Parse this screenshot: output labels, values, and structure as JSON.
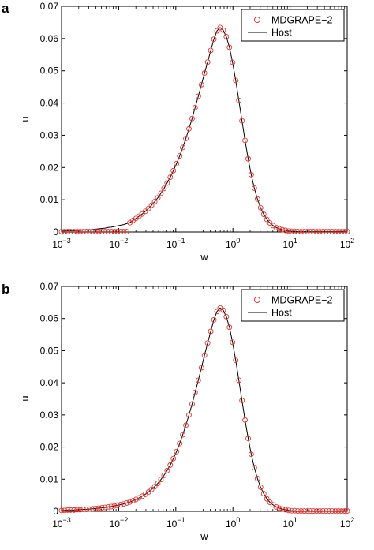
{
  "chart_data": [
    {
      "panel_label": "a",
      "type": "scatter",
      "x_scale": "log",
      "xlabel": "w",
      "ylabel": "u",
      "xlim": [
        0.001,
        100
      ],
      "ylim": [
        0,
        0.07
      ],
      "x_tick_labels": [
        {
          "base": "10",
          "exp": "−3"
        },
        {
          "base": "10",
          "exp": "−2"
        },
        {
          "base": "10",
          "exp": "−1"
        },
        {
          "base": "10",
          "exp": "0"
        },
        {
          "base": "10",
          "exp": "1"
        },
        {
          "base": "10",
          "exp": "2"
        }
      ],
      "y_tick_labels": [
        "0",
        "0.01",
        "0.02",
        "0.03",
        "0.04",
        "0.05",
        "0.06",
        "0.07"
      ],
      "grid": false,
      "legend_placement": "top-right",
      "series": [
        {
          "name": "MDGRAPE−2",
          "kind": "markers",
          "marker": "open-circle",
          "color": "#e8322d",
          "x": [
            0.001,
            0.00113,
            0.00128,
            0.00145,
            0.00165,
            0.00187,
            0.00212,
            0.0024,
            0.00272,
            0.00309,
            0.0035,
            0.00397,
            0.0045,
            0.0051,
            0.00578,
            0.00656,
            0.00744,
            0.00843,
            0.0095,
            0.0108,
            0.0122,
            0.0138,
            0.0157,
            0.0178,
            0.0201,
            0.0228,
            0.0259,
            0.0293,
            0.0332,
            0.0377,
            0.0427,
            0.0484,
            0.0549,
            0.0622,
            0.0705,
            0.08,
            0.0906,
            0.103,
            0.117,
            0.132,
            0.15,
            0.17,
            0.193,
            0.218,
            0.248,
            0.281,
            0.318,
            0.361,
            0.409,
            0.464,
            0.526,
            0.596,
            0.676,
            0.766,
            0.869,
            0.985,
            1.12,
            1.27,
            1.44,
            1.63,
            1.85,
            2.09,
            2.37,
            2.69,
            3.05,
            3.46,
            3.92,
            4.44,
            5.04,
            5.71,
            6.48,
            7.34,
            8.32,
            9.44,
            10.7,
            12.1,
            13.7,
            15.6,
            17.7,
            20.0,
            22.7,
            25.7,
            29.2,
            33.1,
            37.5,
            42.5,
            48.2,
            54.6,
            61.9,
            70.2,
            79.6,
            90.2,
            100.0
          ],
          "y": [
            0.0001,
            0.0001,
            0.0001,
            0.0001,
            0.0001,
            0.0001,
            0.0001,
            0.0001,
            0.0001,
            0.0001,
            0.0001,
            0.0001,
            0.0001,
            0.0001,
            0.0001,
            0.0001,
            0.0001,
            0.0001,
            0.0001,
            0.0001,
            0.0001,
            0.0001,
            0.0029,
            0.0036,
            0.0042,
            0.0049,
            0.0056,
            0.0064,
            0.0073,
            0.0083,
            0.0094,
            0.0106,
            0.012,
            0.0135,
            0.0152,
            0.017,
            0.019,
            0.0212,
            0.0236,
            0.0262,
            0.029,
            0.032,
            0.0352,
            0.0386,
            0.0421,
            0.0457,
            0.0493,
            0.0527,
            0.0563,
            0.0598,
            0.0624,
            0.0634,
            0.0626,
            0.0606,
            0.0573,
            0.0526,
            0.047,
            0.0408,
            0.0345,
            0.0284,
            0.0227,
            0.0178,
            0.0136,
            0.0102,
            0.0075,
            0.0055,
            0.0039,
            0.0028,
            0.002,
            0.0014,
            0.001,
            0.0007,
            0.0005,
            0.0003,
            0.0002,
            0.0002,
            0.0001,
            0.0001,
            0.0001,
            0.0001,
            0.0001,
            0.0001,
            0.0001,
            0.0001,
            0.0001,
            0.0001,
            0.0001,
            0.0001,
            0.0001,
            0.0001,
            0.0001,
            0.0001,
            0.0001
          ]
        },
        {
          "name": "Host",
          "kind": "line",
          "color": "#000000",
          "x": [
            0.001,
            0.00113,
            0.00128,
            0.00145,
            0.00165,
            0.00187,
            0.00212,
            0.0024,
            0.00272,
            0.00309,
            0.0035,
            0.00397,
            0.0045,
            0.0051,
            0.00578,
            0.00656,
            0.00744,
            0.00843,
            0.0095,
            0.0108,
            0.0122,
            0.0138,
            0.0157,
            0.0178,
            0.0201,
            0.0228,
            0.0259,
            0.0293,
            0.0332,
            0.0377,
            0.0427,
            0.0484,
            0.0549,
            0.0622,
            0.0705,
            0.08,
            0.0906,
            0.103,
            0.117,
            0.132,
            0.15,
            0.17,
            0.193,
            0.218,
            0.248,
            0.281,
            0.318,
            0.361,
            0.409,
            0.464,
            0.526,
            0.596,
            0.676,
            0.766,
            0.869,
            0.985,
            1.12,
            1.27,
            1.44,
            1.63,
            1.85,
            2.09,
            2.37,
            2.69,
            3.05,
            3.46,
            3.92,
            4.44,
            5.04,
            5.71,
            6.48,
            7.34,
            8.32,
            9.44,
            10.7,
            12.1,
            13.7,
            15.6,
            17.7,
            20.0,
            22.7,
            25.7,
            29.2,
            33.1,
            37.5,
            42.5,
            48.2,
            54.6,
            61.9,
            70.2,
            79.6,
            90.2,
            100.0
          ],
          "y": [
            0.0003,
            0.0003,
            0.0004,
            0.0004,
            0.0004,
            0.0005,
            0.0005,
            0.0006,
            0.0006,
            0.0007,
            0.0008,
            0.0009,
            0.001,
            0.0011,
            0.0012,
            0.0014,
            0.0015,
            0.0017,
            0.0019,
            0.0021,
            0.0023,
            0.0026,
            0.0029,
            0.0036,
            0.0042,
            0.0049,
            0.0056,
            0.0064,
            0.0073,
            0.0083,
            0.0094,
            0.0106,
            0.012,
            0.0135,
            0.0152,
            0.017,
            0.019,
            0.0212,
            0.0236,
            0.0262,
            0.029,
            0.032,
            0.0352,
            0.0386,
            0.0421,
            0.0457,
            0.0493,
            0.0527,
            0.0563,
            0.0598,
            0.0624,
            0.0634,
            0.0626,
            0.0606,
            0.0573,
            0.0526,
            0.047,
            0.0408,
            0.0345,
            0.0284,
            0.0227,
            0.0178,
            0.0136,
            0.0102,
            0.0075,
            0.0055,
            0.0039,
            0.0028,
            0.002,
            0.0014,
            0.001,
            0.0007,
            0.0005,
            0.0003,
            0.0002,
            0.0002,
            0.0001,
            0.0001,
            0.0001,
            0.0001,
            0.0001,
            0.0001,
            0.0001,
            0.0001,
            0.0001,
            0.0001,
            0.0001,
            0.0001,
            0.0001,
            0.0001,
            0.0001,
            0.0001,
            0.0001
          ]
        }
      ]
    },
    {
      "panel_label": "b",
      "type": "scatter",
      "x_scale": "log",
      "xlabel": "w",
      "ylabel": "u",
      "xlim": [
        0.001,
        100
      ],
      "ylim": [
        0,
        0.07
      ],
      "x_tick_labels": [
        {
          "base": "10",
          "exp": "−3"
        },
        {
          "base": "10",
          "exp": "−2"
        },
        {
          "base": "10",
          "exp": "−1"
        },
        {
          "base": "10",
          "exp": "0"
        },
        {
          "base": "10",
          "exp": "1"
        },
        {
          "base": "10",
          "exp": "2"
        }
      ],
      "y_tick_labels": [
        "0",
        "0.01",
        "0.02",
        "0.03",
        "0.04",
        "0.05",
        "0.06",
        "0.07"
      ],
      "grid": false,
      "legend_placement": "top-right",
      "series": [
        {
          "name": "MDGRAPE−2",
          "kind": "markers",
          "marker": "open-circle",
          "color": "#e8322d",
          "x": [
            0.001,
            0.00113,
            0.00128,
            0.00145,
            0.00165,
            0.00187,
            0.00212,
            0.0024,
            0.00272,
            0.00309,
            0.0035,
            0.00397,
            0.0045,
            0.0051,
            0.00578,
            0.00656,
            0.00744,
            0.00843,
            0.0095,
            0.0108,
            0.0122,
            0.0138,
            0.0157,
            0.0178,
            0.0201,
            0.0228,
            0.0259,
            0.0293,
            0.0332,
            0.0377,
            0.0427,
            0.0484,
            0.0549,
            0.0622,
            0.0705,
            0.08,
            0.0906,
            0.103,
            0.117,
            0.132,
            0.15,
            0.17,
            0.193,
            0.218,
            0.248,
            0.281,
            0.318,
            0.361,
            0.409,
            0.464,
            0.526,
            0.596,
            0.676,
            0.766,
            0.869,
            0.985,
            1.12,
            1.27,
            1.44,
            1.63,
            1.85,
            2.09,
            2.37,
            2.69,
            3.05,
            3.46,
            3.92,
            4.44,
            5.04,
            5.71,
            6.48,
            7.34,
            8.32,
            9.44,
            10.7,
            12.1,
            13.7,
            15.6,
            17.7,
            20.0,
            22.7,
            25.7,
            29.2,
            33.1,
            37.5,
            42.5,
            48.2,
            54.6,
            61.9,
            70.2,
            79.6,
            90.2,
            100.0
          ],
          "y": [
            0.0003,
            0.0003,
            0.0004,
            0.0004,
            0.0004,
            0.0005,
            0.0005,
            0.0006,
            0.0006,
            0.0007,
            0.0008,
            0.0009,
            0.001,
            0.0011,
            0.0012,
            0.0014,
            0.0015,
            0.0017,
            0.0019,
            0.0021,
            0.0023,
            0.0026,
            0.0029,
            0.0033,
            0.0037,
            0.0042,
            0.0047,
            0.0053,
            0.006,
            0.0068,
            0.0077,
            0.0087,
            0.0099,
            0.0112,
            0.0127,
            0.0144,
            0.0164,
            0.0186,
            0.0211,
            0.0238,
            0.0268,
            0.03,
            0.0334,
            0.037,
            0.0408,
            0.0447,
            0.0486,
            0.0524,
            0.056,
            0.0596,
            0.0622,
            0.0633,
            0.0626,
            0.0606,
            0.0573,
            0.0526,
            0.047,
            0.0408,
            0.0345,
            0.0284,
            0.0227,
            0.0178,
            0.0136,
            0.0102,
            0.0075,
            0.0055,
            0.0039,
            0.0028,
            0.002,
            0.0014,
            0.001,
            0.0007,
            0.0005,
            0.0003,
            0.0002,
            0.0002,
            0.0001,
            0.0001,
            0.0001,
            0.0001,
            0.0001,
            0.0001,
            0.0001,
            0.0001,
            0.0001,
            0.0001,
            0.0001,
            0.0001,
            0.0001,
            0.0001,
            0.0001,
            0.0001,
            0.0001
          ]
        },
        {
          "name": "Host",
          "kind": "line",
          "color": "#000000",
          "x": [
            0.001,
            0.00113,
            0.00128,
            0.00145,
            0.00165,
            0.00187,
            0.00212,
            0.0024,
            0.00272,
            0.00309,
            0.0035,
            0.00397,
            0.0045,
            0.0051,
            0.00578,
            0.00656,
            0.00744,
            0.00843,
            0.0095,
            0.0108,
            0.0122,
            0.0138,
            0.0157,
            0.0178,
            0.0201,
            0.0228,
            0.0259,
            0.0293,
            0.0332,
            0.0377,
            0.0427,
            0.0484,
            0.0549,
            0.0622,
            0.0705,
            0.08,
            0.0906,
            0.103,
            0.117,
            0.132,
            0.15,
            0.17,
            0.193,
            0.218,
            0.248,
            0.281,
            0.318,
            0.361,
            0.409,
            0.464,
            0.526,
            0.596,
            0.676,
            0.766,
            0.869,
            0.985,
            1.12,
            1.27,
            1.44,
            1.63,
            1.85,
            2.09,
            2.37,
            2.69,
            3.05,
            3.46,
            3.92,
            4.44,
            5.04,
            5.71,
            6.48,
            7.34,
            8.32,
            9.44,
            10.7,
            12.1,
            13.7,
            15.6,
            17.7,
            20.0,
            22.7,
            25.7,
            29.2,
            33.1,
            37.5,
            42.5,
            48.2,
            54.6,
            61.9,
            70.2,
            79.6,
            90.2,
            100.0
          ],
          "y": [
            0.0003,
            0.0003,
            0.0004,
            0.0004,
            0.0004,
            0.0005,
            0.0005,
            0.0006,
            0.0006,
            0.0007,
            0.0008,
            0.0009,
            0.001,
            0.0011,
            0.0012,
            0.0014,
            0.0015,
            0.0017,
            0.0019,
            0.0021,
            0.0023,
            0.0026,
            0.0029,
            0.0033,
            0.0037,
            0.0042,
            0.0047,
            0.0053,
            0.006,
            0.0068,
            0.0077,
            0.0087,
            0.0099,
            0.0112,
            0.0127,
            0.0144,
            0.0164,
            0.0186,
            0.0211,
            0.0238,
            0.0268,
            0.03,
            0.0334,
            0.037,
            0.0408,
            0.0447,
            0.0486,
            0.0524,
            0.056,
            0.0596,
            0.0622,
            0.0633,
            0.0626,
            0.0606,
            0.0573,
            0.0526,
            0.047,
            0.0408,
            0.0345,
            0.0284,
            0.0227,
            0.0178,
            0.0136,
            0.0102,
            0.0075,
            0.0055,
            0.0039,
            0.0028,
            0.002,
            0.0014,
            0.001,
            0.0007,
            0.0005,
            0.0003,
            0.0002,
            0.0002,
            0.0001,
            0.0001,
            0.0001,
            0.0001,
            0.0001,
            0.0001,
            0.0001,
            0.0001,
            0.0001,
            0.0001,
            0.0001,
            0.0001,
            0.0001,
            0.0001,
            0.0001,
            0.0001,
            0.0001
          ]
        }
      ]
    }
  ]
}
